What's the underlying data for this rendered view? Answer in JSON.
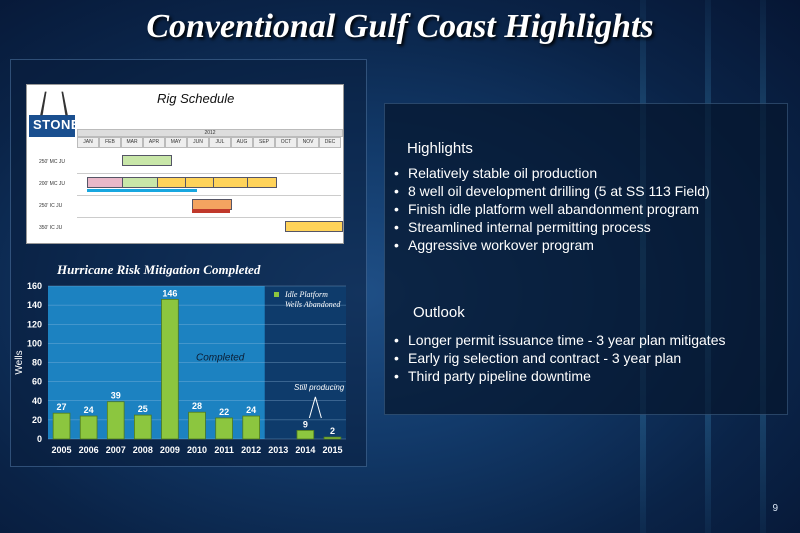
{
  "slide": {
    "title": "Conventional Gulf Coast Highlights",
    "page_number": "9"
  },
  "schedule": {
    "title": "Rig Schedule",
    "logo": "STONE",
    "year": "2012",
    "months": [
      "JAN",
      "FEB",
      "MAR",
      "APR",
      "MAY",
      "JUN",
      "JUL",
      "AUG",
      "SEP",
      "OCT",
      "NOV",
      "DEC"
    ],
    "rigs": [
      "250' MC JU",
      "200' MC JU",
      "250' IC JU",
      "350' IC JU"
    ]
  },
  "highlights": {
    "heading": "Highlights",
    "items": [
      "Relatively stable oil production",
      "8 well oil development drilling  (5 at SS 113 Field)",
      "Finish idle platform well abandonment program",
      "Streamlined internal permitting process",
      "Aggressive workover program"
    ]
  },
  "outlook": {
    "heading": "Outlook",
    "items": [
      "Longer permit issuance time - 3 year plan mitigates",
      "Early rig selection and contract - 3 year plan",
      "Third party pipeline downtime"
    ]
  },
  "chart_data": {
    "type": "bar",
    "title": "Hurricane Risk Mitigation Completed",
    "ylabel": "Wells",
    "categories": [
      "2005",
      "2006",
      "2007",
      "2008",
      "2009",
      "2010",
      "2011",
      "2012",
      "2013",
      "2014",
      "2015"
    ],
    "series": [
      {
        "name": "Idle Platform Wells Abandoned",
        "values": [
          27,
          24,
          39,
          25,
          146,
          28,
          22,
          24,
          null,
          9,
          2
        ]
      }
    ],
    "ylim": [
      0,
      160
    ],
    "yticks": [
      0,
      20,
      40,
      60,
      80,
      100,
      120,
      140,
      160
    ],
    "annotations": [
      "Completed",
      "Still producing"
    ],
    "legend_position": "top-right",
    "grid": true,
    "colors": {
      "bar": "#8cc63f",
      "completed_region": "#1f8fd0",
      "plot_bg": "#0e3b6b"
    }
  }
}
